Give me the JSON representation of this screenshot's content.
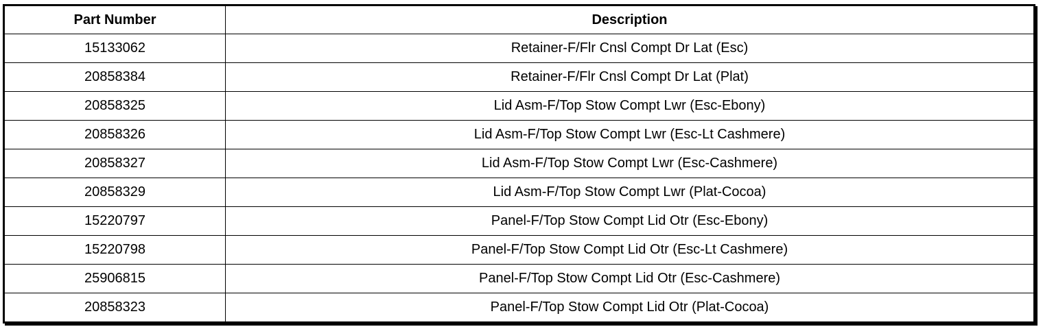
{
  "table": {
    "headers": {
      "part_number": "Part Number",
      "description": "Description"
    },
    "rows": [
      {
        "part_number": "15133062",
        "description": "Retainer-F/Flr Cnsl Compt Dr Lat (Esc)"
      },
      {
        "part_number": "20858384",
        "description": "Retainer-F/Flr Cnsl Compt Dr Lat (Plat)"
      },
      {
        "part_number": "20858325",
        "description": "Lid Asm-F/Top Stow Compt Lwr (Esc-Ebony)"
      },
      {
        "part_number": "20858326",
        "description": "Lid Asm-F/Top Stow Compt Lwr (Esc-Lt Cashmere)"
      },
      {
        "part_number": "20858327",
        "description": "Lid Asm-F/Top Stow Compt Lwr (Esc-Cashmere)"
      },
      {
        "part_number": "20858329",
        "description": "Lid Asm-F/Top Stow Compt Lwr (Plat-Cocoa)"
      },
      {
        "part_number": "15220797",
        "description": "Panel-F/Top Stow Compt Lid Otr (Esc-Ebony)"
      },
      {
        "part_number": "15220798",
        "description": "Panel-F/Top Stow Compt Lid Otr (Esc-Lt Cashmere)"
      },
      {
        "part_number": "25906815",
        "description": "Panel-F/Top Stow Compt Lid Otr (Esc-Cashmere)"
      },
      {
        "part_number": "20858323",
        "description": "Panel-F/Top Stow Compt Lid Otr (Plat-Cocoa)"
      }
    ]
  }
}
